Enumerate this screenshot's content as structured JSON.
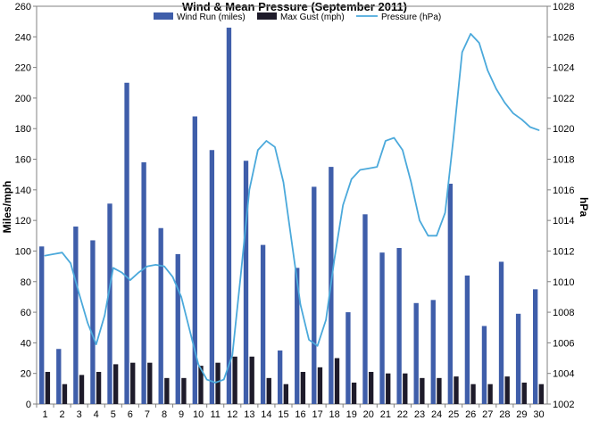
{
  "chart_data": {
    "type": "bar",
    "title": "Wind & Mean Pressure (September 2011)",
    "xlabel": "",
    "ylabel": "Miles/mph",
    "y2label": "hPa",
    "categories": [
      "1",
      "2",
      "3",
      "4",
      "5",
      "6",
      "7",
      "8",
      "9",
      "10",
      "11",
      "12",
      "13",
      "14",
      "15",
      "16",
      "17",
      "18",
      "19",
      "20",
      "21",
      "22",
      "23",
      "24",
      "25",
      "26",
      "27",
      "28",
      "29",
      "30"
    ],
    "ylim": [
      0,
      260
    ],
    "yticks": [
      0,
      20,
      40,
      60,
      80,
      100,
      120,
      140,
      160,
      180,
      200,
      220,
      240,
      260
    ],
    "y2lim": [
      1002,
      1028
    ],
    "y2ticks": [
      1002,
      1004,
      1006,
      1008,
      1010,
      1012,
      1014,
      1016,
      1018,
      1020,
      1022,
      1024,
      1026,
      1028
    ],
    "grid": false,
    "legend_position": "top-center",
    "series": [
      {
        "name": "Wind Run (miles)",
        "type": "bar",
        "axis": "left",
        "color": "#3F5EAA",
        "values": [
          103,
          36,
          116,
          107,
          131,
          210,
          158,
          115,
          98,
          188,
          166,
          246,
          159,
          104,
          35,
          89,
          142,
          155,
          60,
          124,
          99,
          102,
          66,
          68,
          144,
          84,
          51,
          93,
          59,
          75
        ]
      },
      {
        "name": "Max Gust (mph)",
        "type": "bar",
        "axis": "left",
        "color": "#1E1B2A",
        "values": [
          21,
          13,
          19,
          21,
          26,
          27,
          27,
          17,
          17,
          25,
          27,
          31,
          31,
          17,
          13,
          21,
          24,
          30,
          14,
          21,
          20,
          20,
          17,
          17,
          18,
          13,
          13,
          18,
          14,
          13
        ]
      },
      {
        "name": "Pressure (hPa)",
        "type": "line",
        "axis": "right",
        "color": "#4BA9DB",
        "x": [
          1,
          1.5,
          2,
          2.5,
          3,
          3.5,
          4,
          4.5,
          5,
          5.5,
          6,
          6.5,
          7,
          7.5,
          8,
          8.5,
          9,
          9.5,
          10,
          10.5,
          11,
          11.5,
          12,
          12.5,
          13,
          13.5,
          14,
          14.5,
          15,
          15.5,
          16,
          16.5,
          17,
          17.5,
          18,
          18.5,
          19,
          19.5,
          20,
          20.5,
          21,
          21.5,
          22,
          22.5,
          23,
          23.5,
          24,
          24.5,
          25,
          25.5,
          26,
          26.5,
          27,
          27.5,
          28,
          28.5,
          29,
          29.5,
          30
        ],
        "values": [
          1011.7,
          1011.8,
          1011.9,
          1011.2,
          1009.2,
          1007.3,
          1005.9,
          1007.8,
          1010.9,
          1010.6,
          1010.1,
          1010.6,
          1011.0,
          1011.1,
          1011.0,
          1010.3,
          1009.0,
          1006.8,
          1004.6,
          1003.6,
          1003.4,
          1003.6,
          1005.2,
          1010.5,
          1016.0,
          1018.6,
          1019.2,
          1018.8,
          1016.5,
          1012.5,
          1008.5,
          1006.2,
          1005.8,
          1007.5,
          1011.5,
          1015.0,
          1016.7,
          1017.3,
          1017.4,
          1017.5,
          1019.2,
          1019.4,
          1018.6,
          1016.5,
          1014.0,
          1013.0,
          1013.0,
          1014.5,
          1019.5,
          1025.0,
          1026.2,
          1025.6,
          1023.8,
          1022.6,
          1021.7,
          1021.0,
          1020.6,
          1020.1,
          1019.9
        ]
      }
    ]
  }
}
